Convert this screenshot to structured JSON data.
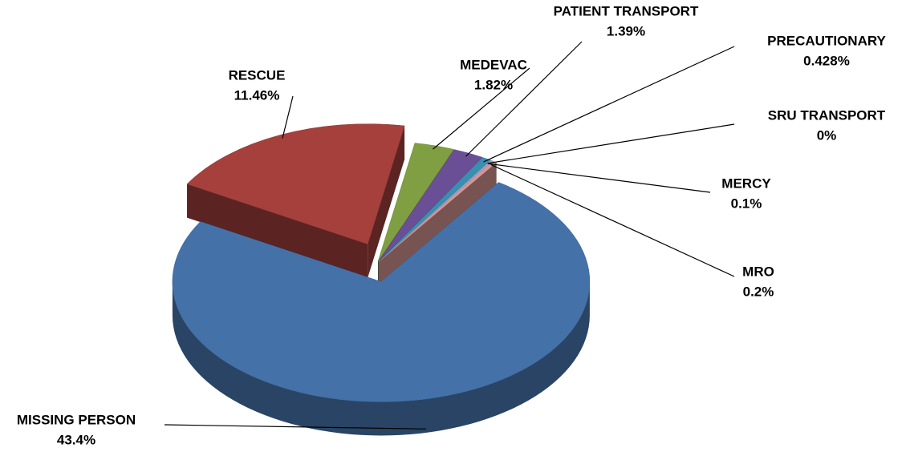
{
  "chart_data": {
    "type": "pie",
    "categories": [
      "RESCUE",
      "MEDEVAC",
      "PATIENT TRANSPORT",
      "PRECAUTIONARY",
      "SRU TRANSPORT",
      "MERCY",
      "MRO",
      "MISSING PERSON"
    ],
    "values": [
      11.46,
      1.82,
      1.39,
      0.428,
      0,
      0.1,
      0.2,
      43.4
    ],
    "value_labels": [
      "11.46%",
      "1.82%",
      "1.39%",
      "0.428%",
      "0%",
      "0.1%",
      "0.2%",
      "43.4%"
    ],
    "colors": [
      "#a5403c",
      "#7f9f42",
      "#6b4f96",
      "#3a8fb0",
      "#e88a2e",
      "#8fa8d0",
      "#d99694",
      "#4571a9"
    ]
  }
}
